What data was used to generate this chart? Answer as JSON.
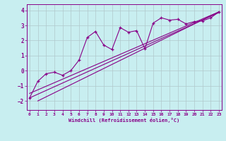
{
  "xlabel": "Windchill (Refroidissement éolien,°C)",
  "bg_color": "#c8eef0",
  "grid_color": "#b0c8cc",
  "line_color": "#880088",
  "x_ticks": [
    0,
    1,
    2,
    3,
    4,
    5,
    6,
    7,
    8,
    9,
    10,
    11,
    12,
    13,
    14,
    15,
    16,
    17,
    18,
    19,
    20,
    21,
    22,
    23
  ],
  "y_ticks": [
    -2,
    -1,
    0,
    1,
    2,
    3,
    4
  ],
  "xlim": [
    -0.3,
    23.3
  ],
  "ylim": [
    -2.6,
    4.4
  ],
  "jagged_x": [
    0,
    1,
    2,
    3,
    4,
    5,
    6,
    7,
    8,
    9,
    10,
    11,
    12,
    13,
    14,
    15,
    16,
    17,
    18,
    19,
    20,
    21,
    22,
    23
  ],
  "jagged_y": [
    -1.8,
    -0.7,
    -0.2,
    -0.1,
    -0.3,
    0.0,
    0.7,
    2.2,
    2.6,
    1.7,
    1.4,
    2.85,
    2.55,
    2.65,
    1.45,
    3.15,
    3.5,
    3.35,
    3.4,
    3.1,
    3.25,
    3.3,
    3.5,
    3.9
  ],
  "upper_line_x": [
    0,
    23
  ],
  "upper_line_y": [
    -1.5,
    3.9
  ],
  "lower_line_x": [
    1,
    23
  ],
  "lower_line_y": [
    -2.0,
    3.9
  ],
  "mid_line_x": [
    0,
    23
  ],
  "mid_line_y": [
    -1.8,
    3.85
  ]
}
